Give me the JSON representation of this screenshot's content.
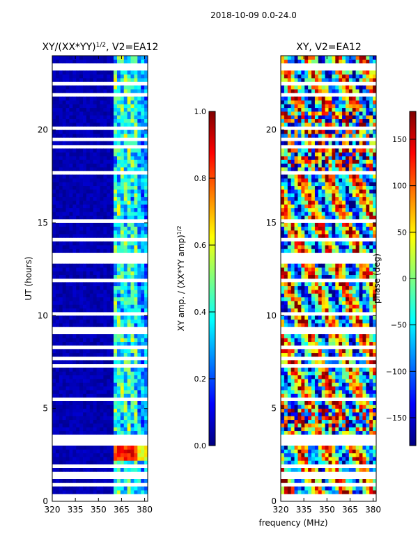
{
  "suptitle": "2018-10-09 0.0-24.0",
  "shared_xlabel": "frequency (MHz)",
  "colors": {
    "jet": [
      "#00007f",
      "#0000ff",
      "#007fff",
      "#00ffff",
      "#7fff7f",
      "#ffff00",
      "#ff7f00",
      "#ff0000",
      "#7f0000"
    ],
    "gap": "#ffffff"
  },
  "chart_data": [
    {
      "type": "heatmap",
      "title_main": "XY/(XX*YY)",
      "title_sup": "1/2",
      "title_rest": ", V2=EA12",
      "xlabel": "",
      "ylabel": "UT (hours)",
      "xlim": [
        320,
        382
      ],
      "ylim": [
        0,
        24
      ],
      "xticks": [
        "320",
        "335",
        "350",
        "365",
        "380"
      ],
      "xtick_values": [
        320,
        335,
        350,
        365,
        380
      ],
      "yticks": [
        "0",
        "5",
        "10",
        "15",
        "20"
      ],
      "ytick_values": [
        0,
        5,
        10,
        15,
        20
      ],
      "colorbar": {
        "label_main": "XY amp. / (XX*YY amp)",
        "label_sup": "1/2",
        "range": [
          0.0,
          1.0
        ],
        "ticks": [
          "0.0",
          "0.2",
          "0.4",
          "0.6",
          "0.8",
          "1.0"
        ],
        "tick_values": [
          0.0,
          0.2,
          0.4,
          0.6,
          0.8,
          1.0
        ]
      },
      "description_values": {
        "low_band_mhz": [
          320,
          360
        ],
        "low_band_level": 0.05,
        "high_band_mhz": [
          360,
          382
        ],
        "high_band_level": 0.35,
        "bright_hours": [
          [
            2.2,
            3.1,
            0.85
          ]
        ]
      }
    },
    {
      "type": "heatmap",
      "title_main": "XY, V2=EA12",
      "xlabel": "frequency (MHz)",
      "ylabel": "",
      "xlim": [
        320,
        382
      ],
      "ylim": [
        0,
        24
      ],
      "xticks": [
        "320",
        "335",
        "350",
        "365",
        "380"
      ],
      "xtick_values": [
        320,
        335,
        350,
        365,
        380
      ],
      "yticks": [
        "0",
        "5",
        "10",
        "15",
        "20"
      ],
      "ytick_values": [
        0,
        5,
        10,
        15,
        20
      ],
      "colorbar": {
        "label": "phase (deg)",
        "range": [
          -180,
          180
        ],
        "ticks": [
          "−150",
          "−100",
          "−50",
          "0",
          "50",
          "100",
          "150"
        ],
        "tick_values": [
          -150,
          -100,
          -50,
          0,
          50,
          100,
          150
        ]
      }
    }
  ]
}
